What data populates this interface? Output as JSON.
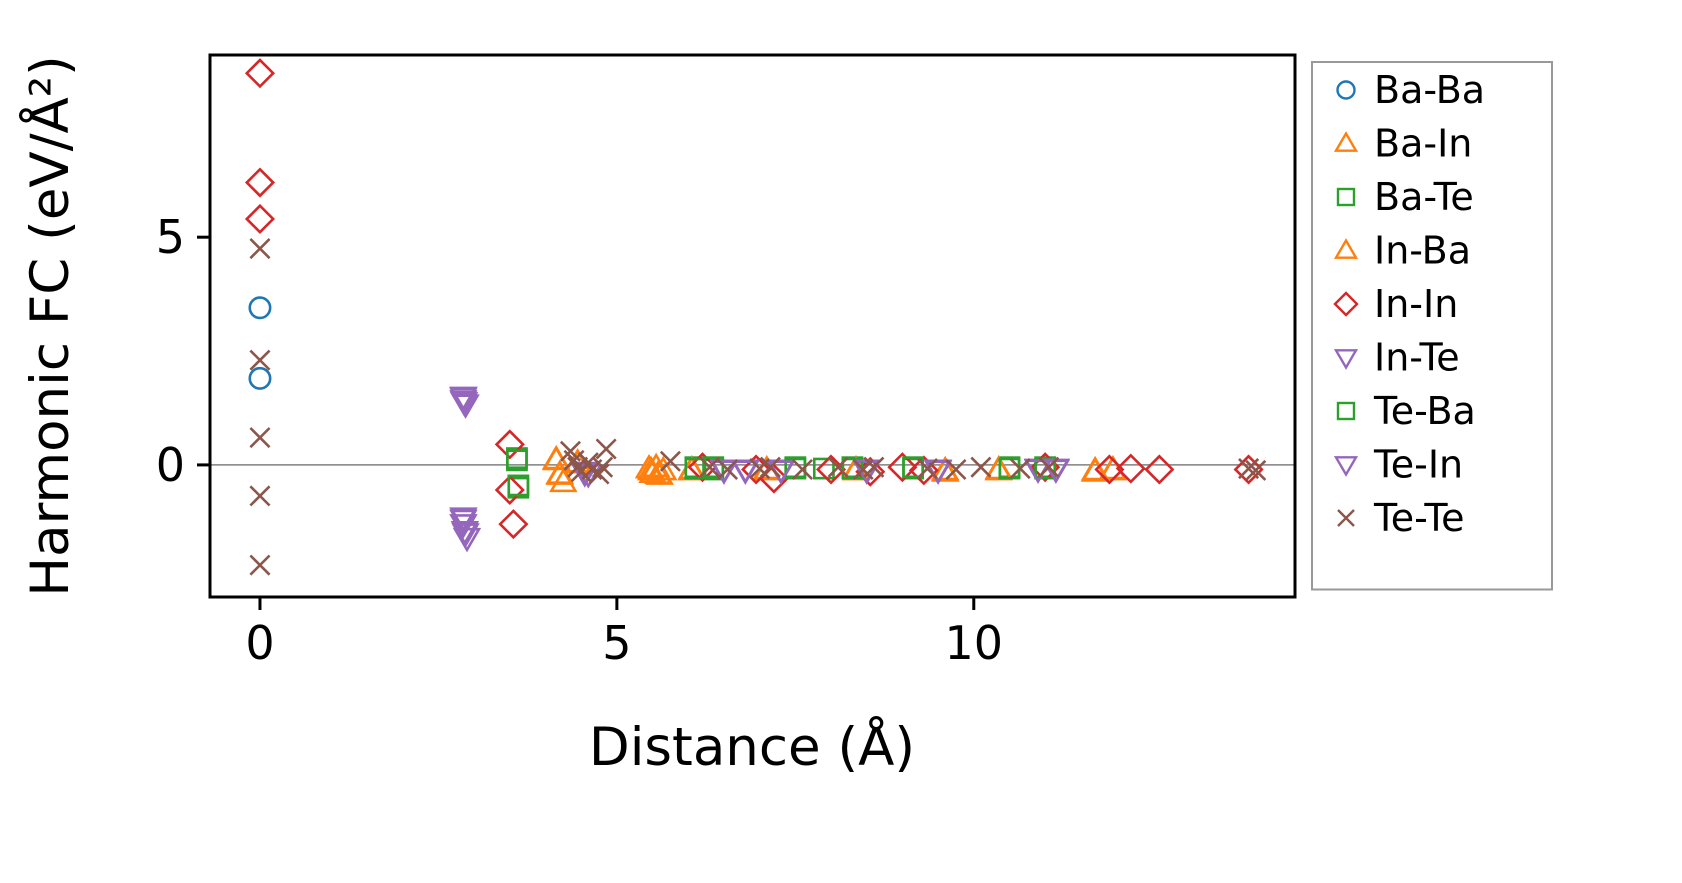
{
  "chart_data": {
    "type": "scatter",
    "title": "",
    "xlabel": "Distance (Å)",
    "ylabel": "Harmonic FC (eV/Å²)",
    "xlim": [
      -0.7,
      14.5
    ],
    "ylim": [
      -2.9,
      9.0
    ],
    "xticks": [
      0,
      5,
      10
    ],
    "yticks": [
      0,
      5
    ],
    "grid": false,
    "zero_line": {
      "y": 0,
      "color": "#808080"
    },
    "legend_position": "right outside",
    "series": [
      {
        "name": "Ba-Ba",
        "marker": "circle",
        "color": "#1f77b4",
        "points": [
          [
            0,
            3.45
          ],
          [
            0,
            1.9
          ]
        ]
      },
      {
        "name": "Ba-In",
        "marker": "triangle-up",
        "color": "#ff7f0e",
        "points": [
          [
            4.15,
            0.12
          ],
          [
            4.2,
            -0.2
          ],
          [
            4.25,
            -0.38
          ],
          [
            4.45,
            0.05
          ],
          [
            5.45,
            -0.08
          ],
          [
            5.5,
            -0.18
          ],
          [
            5.55,
            -0.05
          ],
          [
            5.6,
            -0.22
          ],
          [
            5.65,
            -0.12
          ],
          [
            6.05,
            -0.1
          ],
          [
            7.1,
            -0.12
          ],
          [
            8.35,
            -0.1
          ],
          [
            9.6,
            -0.15
          ],
          [
            10.35,
            -0.12
          ],
          [
            11.7,
            -0.15
          ],
          [
            11.95,
            -0.1
          ]
        ]
      },
      {
        "name": "Ba-Te",
        "marker": "square",
        "color": "#2ca02c",
        "points": [
          [
            3.6,
            0.15
          ],
          [
            3.62,
            -0.5
          ],
          [
            6.1,
            -0.05
          ],
          [
            6.35,
            -0.1
          ],
          [
            7.5,
            -0.05
          ],
          [
            7.9,
            -0.08
          ],
          [
            8.3,
            -0.05
          ],
          [
            9.15,
            -0.08
          ],
          [
            10.5,
            -0.05
          ],
          [
            11.0,
            -0.05
          ]
        ]
      },
      {
        "name": "In-Ba",
        "marker": "triangle-up",
        "color": "#ff7f0e",
        "points": [
          [
            4.15,
            0.1
          ],
          [
            4.2,
            -0.22
          ],
          [
            4.45,
            0.03
          ],
          [
            5.48,
            -0.12
          ],
          [
            5.58,
            -0.2
          ],
          [
            6.05,
            -0.12
          ],
          [
            7.1,
            -0.1
          ],
          [
            8.35,
            -0.12
          ],
          [
            9.6,
            -0.12
          ],
          [
            10.35,
            -0.1
          ],
          [
            11.7,
            -0.12
          ],
          [
            11.95,
            -0.12
          ]
        ]
      },
      {
        "name": "In-In",
        "marker": "diamond",
        "color": "#d62728",
        "points": [
          [
            0,
            8.6
          ],
          [
            0,
            6.2
          ],
          [
            0,
            5.4
          ],
          [
            3.5,
            0.45
          ],
          [
            3.5,
            -0.55
          ],
          [
            3.55,
            -1.3
          ],
          [
            6.2,
            -0.05
          ],
          [
            6.95,
            -0.1
          ],
          [
            7.2,
            -0.3
          ],
          [
            8.0,
            -0.1
          ],
          [
            8.55,
            -0.15
          ],
          [
            9.0,
            -0.05
          ],
          [
            9.3,
            -0.12
          ],
          [
            11.0,
            -0.05
          ],
          [
            11.9,
            -0.1
          ],
          [
            12.2,
            -0.08
          ],
          [
            12.6,
            -0.1
          ],
          [
            13.85,
            -0.1
          ]
        ]
      },
      {
        "name": "In-Te",
        "marker": "triangle-down",
        "color": "#9467bd",
        "points": [
          [
            2.85,
            1.5
          ],
          [
            2.85,
            1.42
          ],
          [
            2.88,
            1.33
          ],
          [
            2.85,
            -1.15
          ],
          [
            2.85,
            -1.3
          ],
          [
            2.87,
            -1.45
          ],
          [
            2.9,
            -1.6
          ],
          [
            4.55,
            -0.15
          ],
          [
            4.6,
            -0.2
          ],
          [
            6.5,
            -0.1
          ],
          [
            6.8,
            -0.12
          ],
          [
            7.3,
            -0.1
          ],
          [
            8.5,
            -0.12
          ],
          [
            9.5,
            -0.1
          ],
          [
            10.9,
            -0.08
          ],
          [
            11.15,
            -0.1
          ]
        ]
      },
      {
        "name": "Te-Ba",
        "marker": "square",
        "color": "#2ca02c",
        "points": [
          [
            3.6,
            0.1
          ],
          [
            3.62,
            -0.45
          ],
          [
            6.1,
            -0.08
          ],
          [
            6.35,
            -0.05
          ],
          [
            7.5,
            -0.08
          ],
          [
            8.3,
            -0.08
          ],
          [
            9.15,
            -0.05
          ],
          [
            10.5,
            -0.08
          ],
          [
            11.0,
            -0.08
          ]
        ]
      },
      {
        "name": "Te-In",
        "marker": "triangle-down",
        "color": "#9467bd",
        "points": [
          [
            2.85,
            1.48
          ],
          [
            2.86,
            1.38
          ],
          [
            2.85,
            -1.2
          ],
          [
            2.88,
            -1.5
          ],
          [
            4.55,
            -0.18
          ],
          [
            6.5,
            -0.12
          ],
          [
            6.8,
            -0.1
          ],
          [
            7.3,
            -0.12
          ],
          [
            8.5,
            -0.1
          ],
          [
            9.5,
            -0.12
          ],
          [
            10.9,
            -0.1
          ],
          [
            11.15,
            -0.08
          ]
        ]
      },
      {
        "name": "Te-Te",
        "marker": "x",
        "color": "#8c564b",
        "points": [
          [
            0,
            4.75
          ],
          [
            0,
            2.3
          ],
          [
            0,
            0.6
          ],
          [
            0,
            -0.68
          ],
          [
            0,
            -2.2
          ],
          [
            4.35,
            0.3
          ],
          [
            4.4,
            0.1
          ],
          [
            4.45,
            -0.05
          ],
          [
            4.5,
            -0.15
          ],
          [
            4.6,
            0.05
          ],
          [
            4.65,
            -0.1
          ],
          [
            4.75,
            -0.2
          ],
          [
            4.8,
            -0.05
          ],
          [
            4.85,
            0.35
          ],
          [
            5.75,
            0.08
          ],
          [
            6.3,
            -0.05
          ],
          [
            6.55,
            -0.1
          ],
          [
            7.0,
            -0.08
          ],
          [
            7.15,
            -0.05
          ],
          [
            7.6,
            -0.1
          ],
          [
            8.1,
            -0.05
          ],
          [
            8.45,
            -0.1
          ],
          [
            8.6,
            -0.05
          ],
          [
            9.35,
            -0.08
          ],
          [
            9.75,
            -0.1
          ],
          [
            10.1,
            -0.05
          ],
          [
            10.65,
            -0.08
          ],
          [
            11.05,
            -0.05
          ],
          [
            13.85,
            -0.08
          ],
          [
            13.95,
            -0.12
          ]
        ]
      }
    ]
  }
}
